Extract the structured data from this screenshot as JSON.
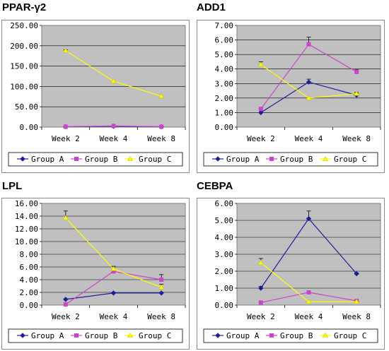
{
  "chart_data": [
    {
      "type": "line",
      "title": "PPAR-γ2",
      "categories": [
        "Week 2",
        "Week 4",
        "Week 8"
      ],
      "ylim": [
        0,
        250
      ],
      "yticks": [
        "0.00",
        "50.00",
        "100.00",
        "150.00",
        "200.00",
        "250.00"
      ],
      "grid": true,
      "legend_position": "bottom",
      "series": [
        {
          "name": "Group A",
          "color": "#1e1e9c",
          "marker": "diamond",
          "values": [
            1,
            2,
            1
          ],
          "errors": [
            0,
            0,
            0
          ]
        },
        {
          "name": "Group B",
          "color": "#cc44cc",
          "marker": "square",
          "values": [
            1,
            3,
            1
          ],
          "errors": [
            0,
            0,
            0
          ]
        },
        {
          "name": "Group C",
          "color": "#ffff00",
          "marker": "triangle",
          "values": [
            188,
            113,
            76
          ],
          "errors": [
            2,
            0,
            0
          ]
        }
      ]
    },
    {
      "type": "line",
      "title": "ADD1",
      "categories": [
        "Week 2",
        "Week 4",
        "Week 8"
      ],
      "ylim": [
        0,
        7
      ],
      "yticks": [
        "0.00",
        "1.00",
        "2.00",
        "3.00",
        "4.00",
        "5.00",
        "6.00",
        "7.00"
      ],
      "grid": true,
      "legend_position": "bottom",
      "series": [
        {
          "name": "Group A",
          "color": "#1e1e9c",
          "marker": "diamond",
          "values": [
            1.0,
            3.1,
            2.2
          ],
          "errors": [
            0.0,
            0.2,
            0.1
          ]
        },
        {
          "name": "Group B",
          "color": "#cc44cc",
          "marker": "square",
          "values": [
            1.25,
            5.7,
            3.8
          ],
          "errors": [
            0.1,
            0.5,
            0.15
          ]
        },
        {
          "name": "Group C",
          "color": "#ffff00",
          "marker": "triangle",
          "values": [
            4.3,
            2.0,
            2.3
          ],
          "errors": [
            0.2,
            0.0,
            0.1
          ]
        }
      ]
    },
    {
      "type": "line",
      "title": "LPL",
      "categories": [
        "Week 2",
        "Week 4",
        "Week 8"
      ],
      "ylim": [
        0,
        16
      ],
      "yticks": [
        "0.00",
        "2.00",
        "4.00",
        "6.00",
        "8.00",
        "10.00",
        "12.00",
        "14.00",
        "16.00"
      ],
      "grid": true,
      "legend_position": "bottom",
      "series": [
        {
          "name": "Group A",
          "color": "#1e1e9c",
          "marker": "diamond",
          "values": [
            0.9,
            1.9,
            1.9
          ],
          "errors": [
            0.1,
            0.1,
            0.1
          ]
        },
        {
          "name": "Group B",
          "color": "#cc44cc",
          "marker": "square",
          "values": [
            0.1,
            5.3,
            4.0
          ],
          "errors": [
            0.0,
            0.2,
            0.8
          ]
        },
        {
          "name": "Group C",
          "color": "#ffff00",
          "marker": "triangle",
          "values": [
            13.7,
            5.7,
            2.8
          ],
          "errors": [
            1.1,
            0.4,
            0.5
          ]
        }
      ]
    },
    {
      "type": "line",
      "title": "CEBPA",
      "categories": [
        "Week 2",
        "Week 4",
        "Week 8"
      ],
      "ylim": [
        0,
        6
      ],
      "yticks": [
        "0.00",
        "1.00",
        "2.00",
        "3.00",
        "4.00",
        "5.00",
        "6.00"
      ],
      "grid": true,
      "legend_position": "bottom",
      "series": [
        {
          "name": "Group A",
          "color": "#1e1e9c",
          "marker": "diamond",
          "values": [
            1.0,
            5.1,
            1.85
          ],
          "errors": [
            0.1,
            0.45,
            0.05
          ]
        },
        {
          "name": "Group B",
          "color": "#cc44cc",
          "marker": "square",
          "values": [
            0.15,
            0.75,
            0.25
          ],
          "errors": [
            0.05,
            0.05,
            0.05
          ]
        },
        {
          "name": "Group C",
          "color": "#ffff00",
          "marker": "triangle",
          "values": [
            2.5,
            0.2,
            0.2
          ],
          "errors": [
            0.25,
            0.0,
            0.0
          ]
        }
      ]
    }
  ]
}
